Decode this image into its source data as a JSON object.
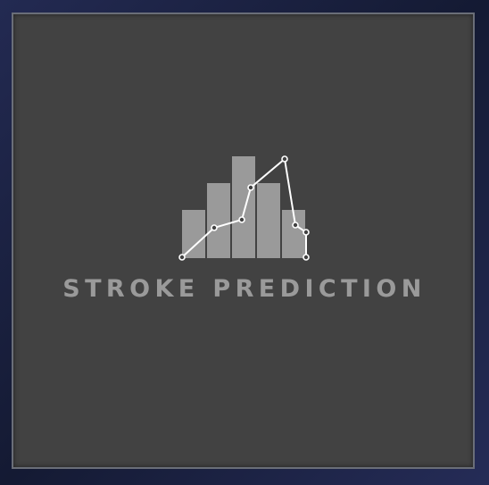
{
  "logo": {
    "name": "stroke-prediction-logo",
    "icon": "bar-line-chart-icon",
    "text": "STROKE PREDICTION",
    "colors": {
      "background": "#424242",
      "bars": "#9a9a9a",
      "line": "#ffffff",
      "text": "#9a9a9a",
      "frame": "#1b2144"
    }
  }
}
